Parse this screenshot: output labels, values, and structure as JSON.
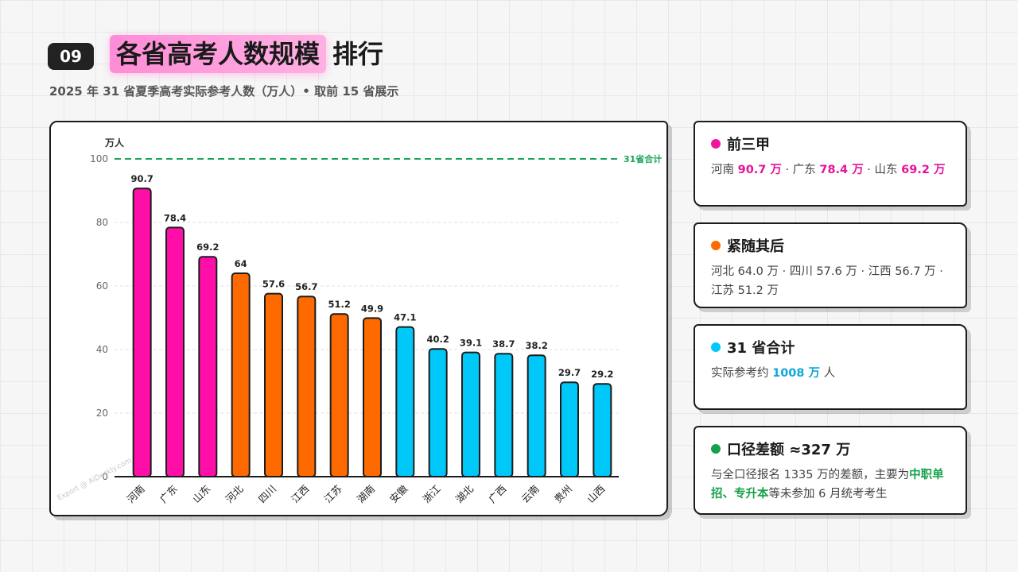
{
  "header": {
    "badge": "09",
    "title_highlight": "各省高考人数规模",
    "title_rest": "排行",
    "subtitle": "2025 年 31 省夏季高考实际参考人数（万人）• 取前 15 省展示"
  },
  "colors": {
    "top": "#ff0fa8",
    "mid": "#ff6a00",
    "rest": "#00c8f8",
    "total_line": "#1aa35a"
  },
  "chart_data": {
    "type": "bar",
    "ylabel": "万人",
    "ylim": [
      0,
      100
    ],
    "yticks": [
      0,
      20,
      40,
      60,
      80,
      100
    ],
    "grid": true,
    "categories": [
      "河南",
      "广东",
      "山东",
      "河北",
      "四川",
      "江西",
      "江苏",
      "湖南",
      "安徽",
      "浙江",
      "湖北",
      "广西",
      "云南",
      "贵州",
      "山西"
    ],
    "values": [
      90.7,
      78.4,
      69.2,
      64,
      57.6,
      56.7,
      51.2,
      49.9,
      47.1,
      40.2,
      39.1,
      38.7,
      38.2,
      29.7,
      29.2
    ],
    "value_labels": [
      "90.7",
      "78.4",
      "69.2",
      "64",
      "57.6",
      "56.7",
      "51.2",
      "49.9",
      "47.1",
      "40.2",
      "39.1",
      "38.7",
      "38.2",
      "29.7",
      "29.2"
    ],
    "groups": [
      "top",
      "top",
      "top",
      "mid",
      "mid",
      "mid",
      "mid",
      "mid",
      "rest",
      "rest",
      "rest",
      "rest",
      "rest",
      "rest",
      "rest"
    ],
    "reference_line": {
      "value": 100,
      "label": "31省合计"
    }
  },
  "watermark": "Export @ AiDeckly.com",
  "cards": [
    {
      "title": "前三甲",
      "dot_color": "#f0139f",
      "body": [
        {
          "t": "河南 "
        },
        {
          "t": "90.7 万",
          "c": "pink"
        },
        {
          "t": " · 广东 "
        },
        {
          "t": "78.4 万",
          "c": "pink"
        },
        {
          "t": " · 山东 "
        },
        {
          "t": "69.2 万",
          "c": "pink"
        }
      ]
    },
    {
      "title": "紧随其后",
      "dot_color": "#ff6a00",
      "body": [
        {
          "t": "河北 64.0 万 · 四川 57.6 万 · 江西 56.7 万 · 江苏 51.2 万"
        }
      ]
    },
    {
      "title": "31 省合计",
      "dot_color": "#00c8f8",
      "body": [
        {
          "t": "实际参考约 "
        },
        {
          "t": "1008 万",
          "c": "cyan"
        },
        {
          "t": " 人"
        }
      ]
    },
    {
      "title": "口径差额 ≈327 万",
      "dot_color": "#15a14a",
      "body": [
        {
          "t": "与全口径报名 1335 万的差额，主要为"
        },
        {
          "t": "中职单招、专升本",
          "c": "green"
        },
        {
          "t": "等未参加 6 月统考考生"
        }
      ]
    }
  ]
}
